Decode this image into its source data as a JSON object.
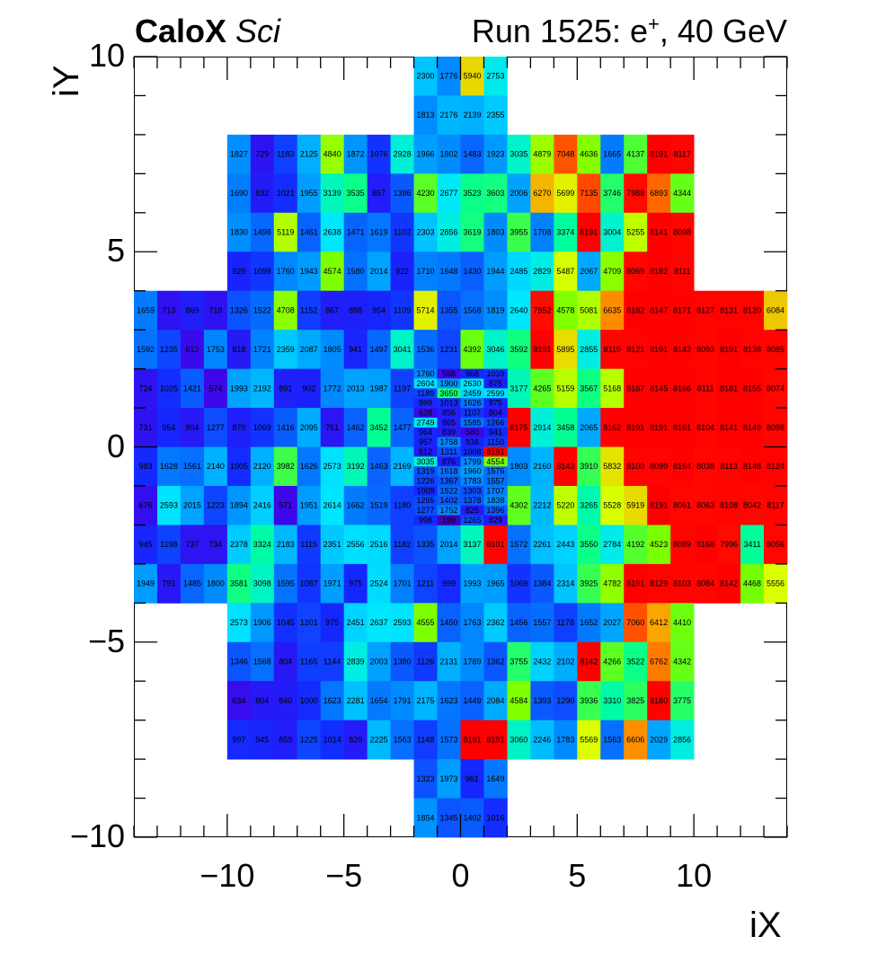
{
  "title": {
    "experiment_bold": "CaloX",
    "experiment_italic": "Sci",
    "run_text": "Run 1525: e",
    "run_sup": "+",
    "run_tail": ", 40 GeV"
  },
  "chart_data": {
    "type": "heatmap",
    "xlabel": "iX",
    "ylabel": "iY",
    "xlim": [
      -14,
      14
    ],
    "ylim": [
      -10,
      10
    ],
    "xticks": [
      -10,
      -5,
      0,
      5,
      10
    ],
    "yticks": [
      -10,
      -5,
      0,
      5,
      10
    ],
    "xtick_labels": [
      "−10",
      "−5",
      "0",
      "5",
      "10"
    ],
    "ytick_labels": [
      "−10",
      "−5",
      "0",
      "5",
      "10"
    ],
    "blocks": [
      {
        "x0": -2,
        "y0": 8,
        "nx": 4,
        "ny": 2,
        "cw": 1,
        "ch": 1,
        "rows": [
          [
            2300,
            1776,
            5940,
            2753
          ],
          [
            1813,
            2176,
            2139,
            2355
          ]
        ]
      },
      {
        "x0": -10,
        "y0": 4,
        "nx": 20,
        "ny": 4,
        "cw": 1,
        "ch": 1,
        "rows": [
          [
            1827,
            729,
            1183,
            2125,
            4840,
            1872,
            1076,
            2928,
            1966,
            1802,
            1483,
            1923,
            3035,
            4879,
            7048,
            4636,
            1665,
            4137,
            8191,
            8117
          ],
          [
            1690,
            832,
            1021,
            1955,
            3139,
            3535,
            857,
            1386,
            4230,
            2677,
            3523,
            3603,
            2006,
            6270,
            5699,
            7135,
            3746,
            7988,
            6893,
            4344
          ],
          [
            1830,
            1498,
            5119,
            1461,
            2638,
            1471,
            1619,
            1102,
            2303,
            2856,
            3619,
            1803,
            3955,
            1708,
            3374,
            8191,
            3004,
            5255,
            8141,
            8098
          ],
          [
            929,
            1098,
            1760,
            1943,
            4574,
            1580,
            2014,
            922,
            1710,
            1648,
            1430,
            1944,
            2485,
            2829,
            5487,
            2067,
            4709,
            8069,
            8182,
            8111
          ]
        ]
      },
      {
        "x0": -14,
        "y0": -4,
        "nx": 28,
        "ny": 8,
        "cw": 1,
        "ch": 1,
        "rows": [
          [
            1659,
            713,
            869,
            718,
            1326,
            1522,
            4708,
            1152,
            867,
            888,
            954,
            1109,
            5714,
            1355,
            1568,
            1819,
            2640,
            7952,
            4578,
            5081,
            6635,
            8182,
            8147,
            8171,
            8127,
            8131,
            8120,
            6084
          ],
          [
            1592,
            1235,
            613,
            1753,
            818,
            1721,
            2359,
            2087,
            1805,
            941,
            1497,
            3041,
            1536,
            1231,
            4392,
            3046,
            3592,
            8191,
            5895,
            2855,
            8119,
            8121,
            8191,
            8142,
            8093,
            8191,
            8138,
            8085
          ],
          [
            724,
            1025,
            1421,
            574,
            1993,
            2192,
            891,
            902,
            1772,
            2013,
            1987,
            1197,
            null,
            null,
            null,
            null,
            3177,
            4265,
            5159,
            3567,
            5168,
            8167,
            8145,
            8166,
            8111,
            8181,
            8155,
            8074
          ],
          [
            731,
            954,
            804,
            1277,
            870,
            1069,
            1416,
            2095,
            761,
            1462,
            3452,
            1477,
            null,
            null,
            null,
            null,
            8175,
            2914,
            3458,
            2065,
            8162,
            8191,
            8191,
            8161,
            8104,
            8141,
            8149,
            8098
          ],
          [
            983,
            1628,
            1561,
            2140,
            1005,
            2120,
            3982,
            1626,
            2573,
            3192,
            1463,
            2169,
            null,
            null,
            null,
            null,
            1803,
            2160,
            8143,
            3910,
            5832,
            8100,
            8099,
            8164,
            8038,
            8113,
            8148,
            8124
          ],
          [
            676,
            2593,
            2015,
            1223,
            1894,
            2416,
            571,
            1951,
            2614,
            1662,
            1519,
            1180,
            null,
            null,
            null,
            null,
            4302,
            2212,
            5220,
            3265,
            5528,
            5919,
            8191,
            8061,
            8063,
            8108,
            8042,
            8117
          ],
          [
            945,
            1198,
            737,
            734,
            2378,
            3324,
            2183,
            1115,
            2351,
            2556,
            2516,
            1182,
            1335,
            2014,
            3137,
            8101,
            1572,
            2261,
            2443,
            3550,
            2784,
            4192,
            4523,
            8089,
            8168,
            7996,
            3411,
            8056
          ],
          [
            1949,
            791,
            1485,
            1800,
            3581,
            3098,
            1595,
            1087,
            1971,
            975,
            2524,
            1701,
            1211,
            999,
            1993,
            1965,
            1069,
            1384,
            2314,
            3925,
            4782,
            8191,
            8129,
            8103,
            8084,
            8142,
            4468,
            5556
          ]
        ]
      },
      {
        "x0": -2,
        "y0": -2,
        "nx": 4,
        "ny": 16,
        "cw": 1,
        "ch": 0.25,
        "rows": [
          [
            1760,
            588,
            968,
            1039
          ],
          [
            2604,
            1900,
            2630,
            875
          ],
          [
            1189,
            3650,
            2459,
            2599
          ],
          [
            999,
            1013,
            1626,
            975
          ],
          [
            628,
            856,
            1107,
            804
          ],
          [
            2749,
            865,
            1585,
            1266
          ],
          [
            964,
            839,
            580,
            941
          ],
          [
            957,
            1758,
            938,
            1150
          ],
          [
            812,
            1311,
            1008,
            8191
          ],
          [
            3035,
            876,
            1799,
            4554
          ],
          [
            1319,
            1618,
            1960,
            1576
          ],
          [
            1226,
            1367,
            1783,
            1557
          ],
          [
            1009,
            1522,
            1303,
            1707
          ],
          [
            1265,
            1402,
            1378,
            1838
          ],
          [
            1277,
            1752,
            825,
            1396
          ],
          [
            998,
            199,
            1265,
            829
          ]
        ]
      },
      {
        "x0": -10,
        "y0": -8,
        "nx": 20,
        "ny": 4,
        "cw": 1,
        "ch": 1,
        "rows": [
          [
            2573,
            1906,
            1045,
            1201,
            975,
            2451,
            2637,
            2593,
            4555,
            1450,
            1763,
            2362,
            1456,
            1557,
            1178,
            1652,
            2027,
            7060,
            6412,
            4410
          ],
          [
            1346,
            1568,
            804,
            1165,
            1144,
            2839,
            2003,
            1380,
            1126,
            2131,
            1789,
            1362,
            3755,
            2432,
            2102,
            8142,
            4266,
            3522,
            6762,
            4342
          ],
          [
            634,
            804,
            840,
            1000,
            1623,
            2281,
            1654,
            1791,
            2175,
            1623,
            1449,
            2084,
            4584,
            1393,
            1290,
            3936,
            3310,
            3825,
            8180,
            3775
          ],
          [
            997,
            945,
            859,
            1225,
            1014,
            820,
            2225,
            1563,
            1148,
            1573,
            8191,
            8191,
            3060,
            2246,
            1783,
            5569,
            1563,
            6606,
            2029,
            2856
          ]
        ]
      },
      {
        "x0": -2,
        "y0": -10,
        "nx": 4,
        "ny": 2,
        "cw": 1,
        "ch": 1,
        "rows": [
          [
            1323,
            1973,
            961,
            1649
          ],
          [
            1854,
            1345,
            1402,
            1016
          ]
        ]
      }
    ],
    "color_max": 8191
  }
}
